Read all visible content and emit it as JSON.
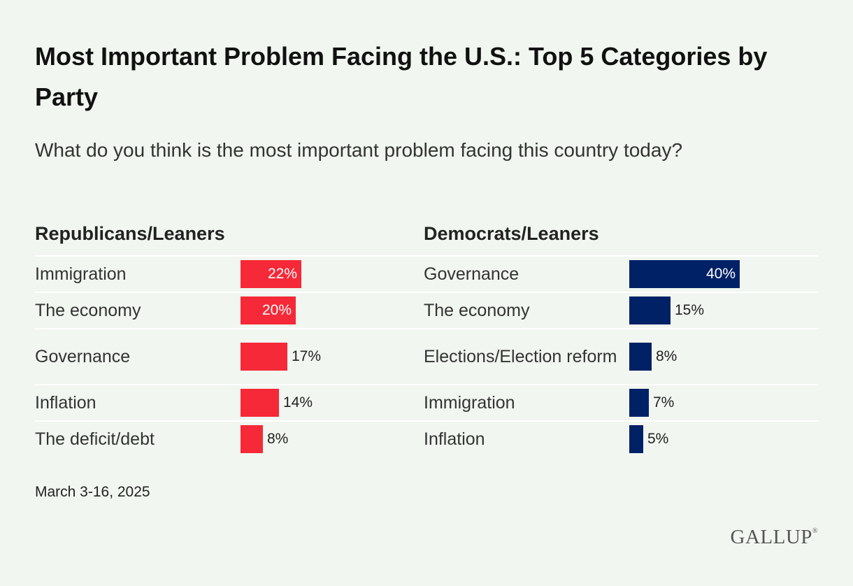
{
  "title": "Most Important Problem Facing the U.S.: Top 5 Categories by Party",
  "subtitle": "What do you think is the most important problem facing this country today?",
  "footnote": "March 3-16, 2025",
  "logo": "GALLUP",
  "colors": {
    "background": "#f1f6f0",
    "republican": "#f52938",
    "democrat": "#002166"
  },
  "chart_data": [
    {
      "type": "bar",
      "orientation": "horizontal",
      "title": "Republicans/Leaners",
      "color": "#f52938",
      "unit": "%",
      "xlim": [
        0,
        40
      ],
      "categories": [
        "Immigration",
        "The economy",
        "Governance",
        "Inflation",
        "The deficit/debt"
      ],
      "values": [
        22,
        20,
        17,
        14,
        8
      ],
      "labels": [
        "22%",
        "20%",
        "17%",
        "14%",
        "8%"
      ]
    },
    {
      "type": "bar",
      "orientation": "horizontal",
      "title": "Democrats/Leaners",
      "color": "#002166",
      "unit": "%",
      "xlim": [
        0,
        40
      ],
      "categories": [
        "Governance",
        "The economy",
        "Elections/Election reform",
        "Immigration",
        "Inflation"
      ],
      "values": [
        40,
        15,
        8,
        7,
        5
      ],
      "labels": [
        "40%",
        "15%",
        "8%",
        "7%",
        "5%"
      ]
    }
  ]
}
